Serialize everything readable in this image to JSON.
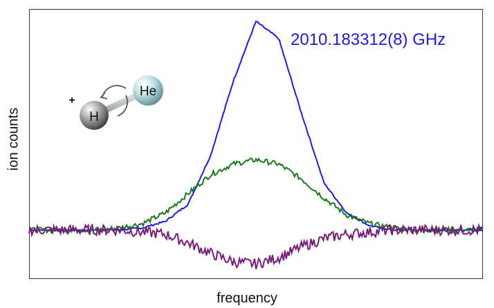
{
  "chart_data": {
    "type": "line",
    "title": "",
    "annotation": "2010.183312(8) GHz",
    "xlabel": "frequency",
    "ylabel": "ion counts",
    "x_ticks": [],
    "y_ticks": [],
    "grid": false,
    "legend": null,
    "inset_image": {
      "description": "HeH+ molecule with rotation arrow",
      "atoms": [
        "H",
        "He"
      ],
      "charge": "+"
    },
    "x": [
      0,
      0.05,
      0.1,
      0.15,
      0.2,
      0.25,
      0.3,
      0.35,
      0.4,
      0.45,
      0.5,
      0.55,
      0.6,
      0.65,
      0.7,
      0.75,
      0.8,
      0.85,
      0.9,
      0.95,
      1.0
    ],
    "series": [
      {
        "name": "blue",
        "color": "#1a1aee",
        "values": [
          0,
          0,
          0,
          0,
          0,
          0.01,
          0.04,
          0.12,
          0.35,
          0.7,
          0.98,
          0.9,
          0.55,
          0.22,
          0.08,
          0.02,
          0,
          0,
          0,
          0,
          0
        ]
      },
      {
        "name": "green",
        "color": "#1a7a1a",
        "values": [
          0,
          0,
          0,
          0,
          0.01,
          0.03,
          0.08,
          0.17,
          0.26,
          0.31,
          0.33,
          0.31,
          0.24,
          0.15,
          0.07,
          0.03,
          0.01,
          0,
          0,
          0,
          0
        ]
      },
      {
        "name": "purple",
        "color": "#7a1a7a",
        "values": [
          0,
          0,
          0,
          0,
          0,
          -0.01,
          -0.02,
          -0.06,
          -0.11,
          -0.15,
          -0.16,
          -0.13,
          -0.08,
          -0.04,
          -0.02,
          -0.01,
          0,
          0,
          0,
          0,
          0
        ]
      }
    ],
    "ylim": [
      -0.23,
      1.05
    ],
    "xlim": [
      0,
      1
    ]
  }
}
